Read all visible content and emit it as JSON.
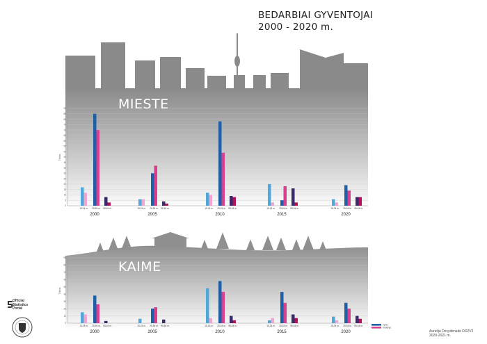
{
  "title_line1": "BEDARBIAI GYVENTOJAI",
  "title_line2": "2000 - 2020 m.",
  "logo_text": [
    "Official",
    "Statistics",
    "Portal"
  ],
  "author_line1": "Aurelija Dovydėnaitė DD2V2",
  "author_line2": "2020-2021 m.",
  "colors": {
    "male_dark": "#1f5fa8",
    "male_light": "#4fa8d8",
    "female_dark": "#d83f8f",
    "female_light": "#f0a6cf",
    "older_male": "#3a2a6a",
    "older_female": "#b0135a"
  },
  "chart_data": [
    {
      "type": "bar",
      "label": "MIESTE",
      "years": [
        "2000",
        "2005",
        "2010",
        "2015",
        "2020"
      ],
      "age_groups": [
        "15-24 m.",
        "25-54 m.",
        "55-64 m."
      ],
      "ylabel": "Tūkst.",
      "ylim": [
        0,
        90
      ],
      "yticks": [
        0,
        5,
        10,
        15,
        20,
        25,
        30,
        35,
        40,
        45,
        50,
        55,
        60,
        65,
        70,
        75,
        80,
        85,
        90
      ],
      "series": [
        {
          "name": "vyrai",
          "values": [
            [
              17,
              85,
              8
            ],
            [
              6,
              30,
              4
            ],
            [
              12,
              78,
              9
            ],
            [
              20,
              5,
              16
            ],
            [
              6,
              19,
              8
            ]
          ]
        },
        {
          "name": "moterys",
          "values": [
            [
              12,
              70,
              3
            ],
            [
              6,
              37,
              2
            ],
            [
              10,
              49,
              8
            ],
            [
              3,
              18,
              3
            ],
            [
              3,
              14,
              8
            ]
          ]
        }
      ]
    },
    {
      "type": "bar",
      "label": "KAIME",
      "years": [
        "2000",
        "2005",
        "2010",
        "2015",
        "2020"
      ],
      "age_groups": [
        "15-24 m.",
        "25-54 m.",
        "55-64 m."
      ],
      "ylabel": "Tūkst.",
      "ylim": [
        0,
        90
      ],
      "yticks": [
        0,
        10,
        20,
        30,
        40,
        50,
        60,
        70,
        80,
        90
      ],
      "series": [
        {
          "name": "vyrai",
          "values": [
            [
              15,
              38,
              3
            ],
            [
              6,
              20,
              5
            ],
            [
              48,
              58,
              10
            ],
            [
              4,
              43,
              12
            ],
            [
              9,
              28,
              10
            ]
          ]
        },
        {
          "name": "moterys",
          "values": [
            [
              12,
              26,
              0
            ],
            [
              0,
              22,
              0
            ],
            [
              7,
              43,
              4
            ],
            [
              7,
              28,
              7
            ],
            [
              4,
              20,
              6
            ]
          ]
        }
      ],
      "legend": [
        "vyrai",
        "moterys"
      ],
      "legend_position": "bottom-right"
    }
  ]
}
